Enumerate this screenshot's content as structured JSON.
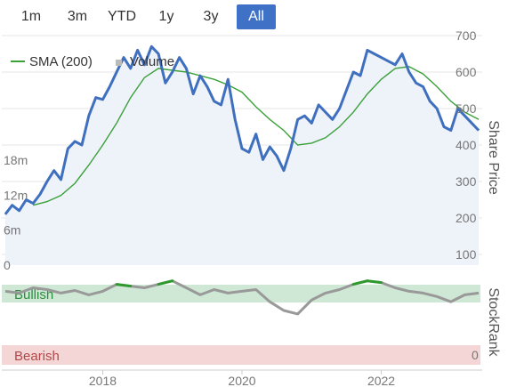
{
  "range_buttons": [
    {
      "label": "1m",
      "active": false
    },
    {
      "label": "3m",
      "active": false
    },
    {
      "label": "YTD",
      "active": false
    },
    {
      "label": "1y",
      "active": false
    },
    {
      "label": "3y",
      "active": false
    },
    {
      "label": "All",
      "active": true
    }
  ],
  "legend": {
    "sma_label": "SMA (200)",
    "volume_label": "Volume"
  },
  "axes": {
    "right_title": "Share Price",
    "right_title_lower": "StockRank",
    "price_ticks": [
      "700",
      "600",
      "500",
      "400",
      "300",
      "200",
      "100"
    ],
    "volume_ticks": [
      "18m",
      "12m",
      "6m",
      "0"
    ],
    "rank_zero": "0",
    "x_ticks": [
      "2018",
      "2020",
      "2022"
    ]
  },
  "zones": {
    "bullish": "Bullish",
    "bearish": "Bearish"
  },
  "colors": {
    "price": "#3f6fbf",
    "sma": "#3aa13a",
    "area": "#eef2f9",
    "volume": "#cccccc",
    "rank": "#999999",
    "rank_bull": "#2e9a2e",
    "bull_zone": "#cfe8d6",
    "bear_zone": "#f4d6d6",
    "grid": "#e6e6e6",
    "accent": "#3f72c6"
  },
  "chart_data": [
    {
      "type": "line",
      "title": "",
      "ylabel": "Share Price",
      "ylim": [
        100,
        700
      ],
      "x_axis": "year",
      "x_ticks": [
        "2018",
        "2020",
        "2022"
      ],
      "series": [
        {
          "name": "Share Price",
          "x": [
            2016.6,
            2016.7,
            2016.8,
            2016.9,
            2017.0,
            2017.1,
            2017.2,
            2017.3,
            2017.4,
            2017.5,
            2017.6,
            2017.7,
            2017.8,
            2017.9,
            2018.0,
            2018.1,
            2018.2,
            2018.3,
            2018.4,
            2018.5,
            2018.6,
            2018.7,
            2018.8,
            2018.9,
            2019.0,
            2019.1,
            2019.2,
            2019.3,
            2019.4,
            2019.5,
            2019.6,
            2019.7,
            2019.8,
            2019.9,
            2020.0,
            2020.1,
            2020.2,
            2020.3,
            2020.4,
            2020.5,
            2020.6,
            2020.7,
            2020.8,
            2020.9,
            2021.0,
            2021.1,
            2021.2,
            2021.3,
            2021.4,
            2021.5,
            2021.6,
            2021.7,
            2021.8,
            2021.9,
            2022.0,
            2022.1,
            2022.2,
            2022.3,
            2022.4,
            2022.5,
            2022.6,
            2022.7,
            2022.8,
            2022.9,
            2023.0,
            2023.1,
            2023.2,
            2023.3,
            2023.4
          ],
          "values": [
            210,
            235,
            220,
            250,
            240,
            265,
            300,
            330,
            305,
            390,
            410,
            400,
            480,
            530,
            525,
            560,
            600,
            640,
            610,
            660,
            620,
            670,
            650,
            570,
            600,
            640,
            610,
            540,
            590,
            560,
            520,
            510,
            580,
            470,
            390,
            380,
            430,
            360,
            395,
            370,
            330,
            390,
            470,
            480,
            460,
            510,
            490,
            470,
            500,
            550,
            600,
            590,
            660,
            650,
            640,
            630,
            620,
            650,
            600,
            570,
            560,
            520,
            500,
            450,
            440,
            500,
            480,
            460,
            440
          ]
        },
        {
          "name": "SMA (200)",
          "x": [
            2017.0,
            2017.2,
            2017.4,
            2017.6,
            2017.8,
            2018.0,
            2018.2,
            2018.4,
            2018.6,
            2018.8,
            2019.0,
            2019.2,
            2019.4,
            2019.6,
            2019.8,
            2020.0,
            2020.2,
            2020.4,
            2020.6,
            2020.8,
            2021.0,
            2021.2,
            2021.4,
            2021.6,
            2021.8,
            2022.0,
            2022.2,
            2022.4,
            2022.6,
            2022.8,
            2023.0,
            2023.2,
            2023.4
          ],
          "values": [
            235,
            245,
            262,
            295,
            345,
            400,
            460,
            530,
            585,
            610,
            605,
            600,
            590,
            580,
            565,
            545,
            505,
            470,
            440,
            400,
            405,
            420,
            450,
            490,
            540,
            580,
            610,
            615,
            595,
            560,
            520,
            490,
            470
          ]
        }
      ]
    },
    {
      "type": "bar",
      "title": "",
      "ylabel": "Volume",
      "ylim": [
        0,
        18
      ],
      "x": [
        2016.7,
        2016.9,
        2017.1,
        2017.3,
        2017.5,
        2017.7,
        2017.9,
        2018.1,
        2018.3,
        2018.5,
        2018.7,
        2018.9,
        2019.1,
        2019.3,
        2019.5,
        2019.7,
        2019.9,
        2020.1,
        2020.3,
        2020.5,
        2020.7,
        2020.9,
        2021.1,
        2021.3,
        2021.5,
        2021.7,
        2021.9,
        2022.1,
        2022.3,
        2022.5,
        2022.7,
        2022.9,
        2023.1,
        2023.3
      ],
      "values": [
        0.5,
        0.8,
        2.5,
        5.5,
        1.2,
        0.7,
        0.9,
        2.0,
        1.1,
        0.8,
        0.6,
        1.4,
        0.7,
        0.6,
        1.0,
        0.5,
        0.6,
        1.3,
        0.8,
        0.5,
        0.9,
        0.7,
        0.6,
        0.8,
        0.5,
        0.6,
        0.9,
        0.7,
        0.8,
        0.6,
        5.3,
        0.7,
        6.6,
        1.0
      ]
    },
    {
      "type": "line",
      "title": "",
      "ylabel": "StockRank",
      "ylim": [
        0,
        100
      ],
      "series": [
        {
          "name": "StockRank",
          "x": [
            2016.6,
            2016.8,
            2017.0,
            2017.2,
            2017.4,
            2017.6,
            2017.8,
            2018.0,
            2018.2,
            2018.4,
            2018.6,
            2018.8,
            2019.0,
            2019.2,
            2019.4,
            2019.6,
            2019.8,
            2020.0,
            2020.2,
            2020.4,
            2020.6,
            2020.8,
            2021.0,
            2021.2,
            2021.4,
            2021.6,
            2021.8,
            2022.0,
            2022.2,
            2022.4,
            2022.6,
            2022.8,
            2023.0,
            2023.2,
            2023.4
          ],
          "values": [
            72,
            70,
            76,
            74,
            70,
            73,
            68,
            72,
            80,
            78,
            76,
            80,
            84,
            76,
            68,
            74,
            70,
            72,
            74,
            60,
            50,
            46,
            62,
            70,
            74,
            80,
            84,
            82,
            76,
            72,
            70,
            66,
            60,
            68,
            70
          ]
        }
      ]
    }
  ]
}
